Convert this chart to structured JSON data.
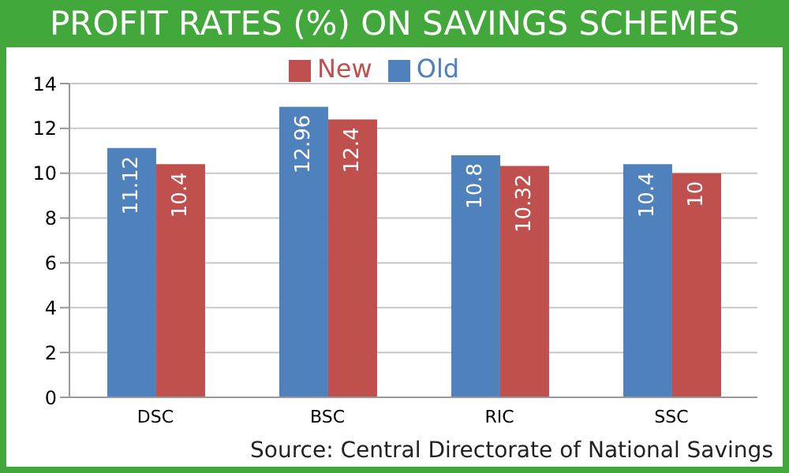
{
  "chart_data": {
    "type": "bar",
    "title": "PROFIT RATES (%) ON SAVINGS SCHEMES",
    "categories": [
      "DSC",
      "BSC",
      "RIC",
      "SSC"
    ],
    "series": [
      {
        "name": "Old",
        "color": "#4f81bd",
        "values": [
          11.12,
          12.96,
          10.8,
          10.4
        ]
      },
      {
        "name": "New",
        "color": "#c0504d",
        "values": [
          10.4,
          12.4,
          10.32,
          10
        ]
      }
    ],
    "ylim": [
      0,
      14
    ],
    "yticks": [
      0,
      2,
      4,
      6,
      8,
      10,
      12,
      14
    ],
    "grid": "y",
    "legend": "top",
    "data_labels": true,
    "annotations": [
      "Source: Central Directorate of National Savings"
    ]
  }
}
